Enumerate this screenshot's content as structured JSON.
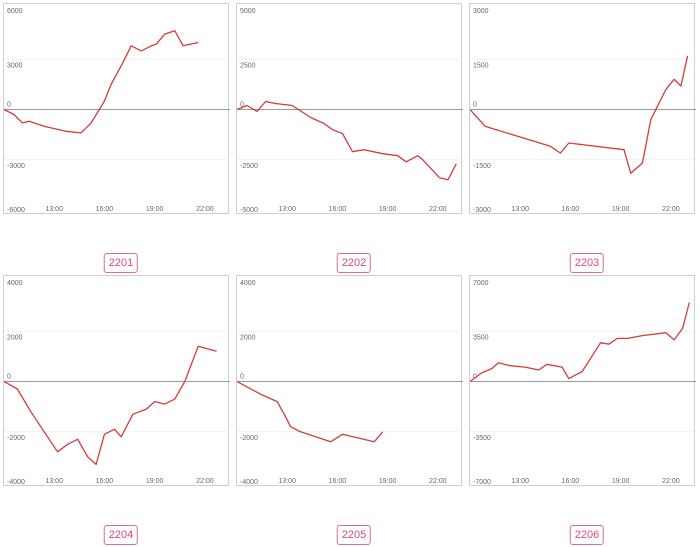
{
  "chart_data": [
    {
      "type": "line",
      "label": "2201",
      "ylim": [
        -6000,
        6000
      ],
      "yticks": [
        "6000",
        "3000",
        "0",
        "-3000",
        "-6000"
      ],
      "xticks": [
        "13:00",
        "16:00",
        "19:00",
        "22:00"
      ],
      "x": [
        10.0,
        10.6,
        11.1,
        11.5,
        12.4,
        13.7,
        14.6,
        15.2,
        16.0,
        16.4,
        17.1,
        17.6,
        18.2,
        18.8,
        19.1,
        19.6,
        20.2,
        20.7,
        21.6
      ],
      "values": [
        0,
        -300,
        -800,
        -700,
        -1000,
        -1300,
        -1400,
        -800,
        500,
        1500,
        2800,
        3800,
        3500,
        3800,
        3900,
        4500,
        4700,
        3800,
        4000
      ],
      "series_color": "#d43c3c"
    },
    {
      "type": "line",
      "label": "2202",
      "ylim": [
        -5000,
        5000
      ],
      "yticks": [
        "5000",
        "2500",
        "0",
        "-2500",
        "-5000"
      ],
      "xticks": [
        "13:00",
        "16:00",
        "19:00",
        "22:00"
      ],
      "x": [
        10.0,
        10.6,
        11.2,
        11.7,
        12.3,
        13.3,
        14.4,
        15.2,
        15.7,
        16.3,
        16.9,
        17.6,
        18.7,
        19.6,
        20.1,
        20.8,
        21.1,
        22.1,
        22.6,
        23.1
      ],
      "values": [
        0,
        200,
        -100,
        400,
        300,
        200,
        -400,
        -700,
        -1000,
        -1200,
        -2100,
        -2000,
        -2200,
        -2300,
        -2600,
        -2300,
        -2500,
        -3400,
        -3500,
        -2700
      ],
      "series_color": "#d43c3c"
    },
    {
      "type": "line",
      "label": "2203",
      "ylim": [
        -3000,
        3000
      ],
      "yticks": [
        "3000",
        "1500",
        "0",
        "-1500",
        "-3000"
      ],
      "xticks": [
        "13:00",
        "16:00",
        "19:00",
        "22:00"
      ],
      "x": [
        10.0,
        10.9,
        14.8,
        15.4,
        15.9,
        19.2,
        19.6,
        20.3,
        20.8,
        21.7,
        22.2,
        22.6,
        23.0
      ],
      "values": [
        0,
        -500,
        -1100,
        -1300,
        -1000,
        -1200,
        -1900,
        -1600,
        -300,
        600,
        900,
        700,
        1600
      ],
      "series_color": "#d43c3c"
    },
    {
      "type": "line",
      "label": "2204",
      "ylim": [
        -4000,
        4000
      ],
      "yticks": [
        "4000",
        "2000",
        "0",
        "-2000",
        "-4000"
      ],
      "xticks": [
        "13:00",
        "16:00",
        "19:00",
        "22:00"
      ],
      "x": [
        10.0,
        10.8,
        11.6,
        12.4,
        13.2,
        13.8,
        14.4,
        15.0,
        15.5,
        16.0,
        16.6,
        17.0,
        17.7,
        18.5,
        19.0,
        19.6,
        20.2,
        20.8,
        21.6,
        22.7
      ],
      "values": [
        0,
        -300,
        -1200,
        -2000,
        -2800,
        -2500,
        -2300,
        -3000,
        -3300,
        -2100,
        -1900,
        -2200,
        -1300,
        -1100,
        -800,
        -900,
        -700,
        0,
        1400,
        1200
      ],
      "series_color": "#d43c3c"
    },
    {
      "type": "line",
      "label": "2205",
      "ylim": [
        -4000,
        4000
      ],
      "yticks": [
        "4000",
        "2000",
        "0",
        "-2000",
        "-4000"
      ],
      "xticks": [
        "13:00",
        "16:00",
        "19:00",
        "22:00"
      ],
      "x": [
        10.0,
        11.4,
        12.4,
        12.9,
        13.2,
        13.8,
        15.6,
        16.3,
        18.2,
        18.7
      ],
      "values": [
        0,
        -500,
        -800,
        -1400,
        -1800,
        -2000,
        -2400,
        -2100,
        -2400,
        -2000
      ],
      "series_color": "#d43c3c"
    },
    {
      "type": "line",
      "label": "2206",
      "ylim": [
        -7000,
        7000
      ],
      "yticks": [
        "7000",
        "3500",
        "0",
        "-3500",
        "-7000"
      ],
      "xticks": [
        "13:00",
        "16:00",
        "19:00",
        "22:00"
      ],
      "x": [
        10.0,
        10.7,
        11.3,
        11.7,
        12.4,
        13.3,
        14.1,
        14.6,
        15.5,
        15.9,
        16.7,
        17.8,
        18.3,
        18.8,
        19.4,
        20.3,
        21.7,
        22.2,
        22.7,
        23.1
      ],
      "values": [
        0,
        600,
        900,
        1300,
        1100,
        1000,
        800,
        1200,
        1000,
        200,
        700,
        2700,
        2600,
        3000,
        3000,
        3200,
        3400,
        2900,
        3700,
        5500
      ],
      "series_color": "#d43c3c"
    }
  ]
}
